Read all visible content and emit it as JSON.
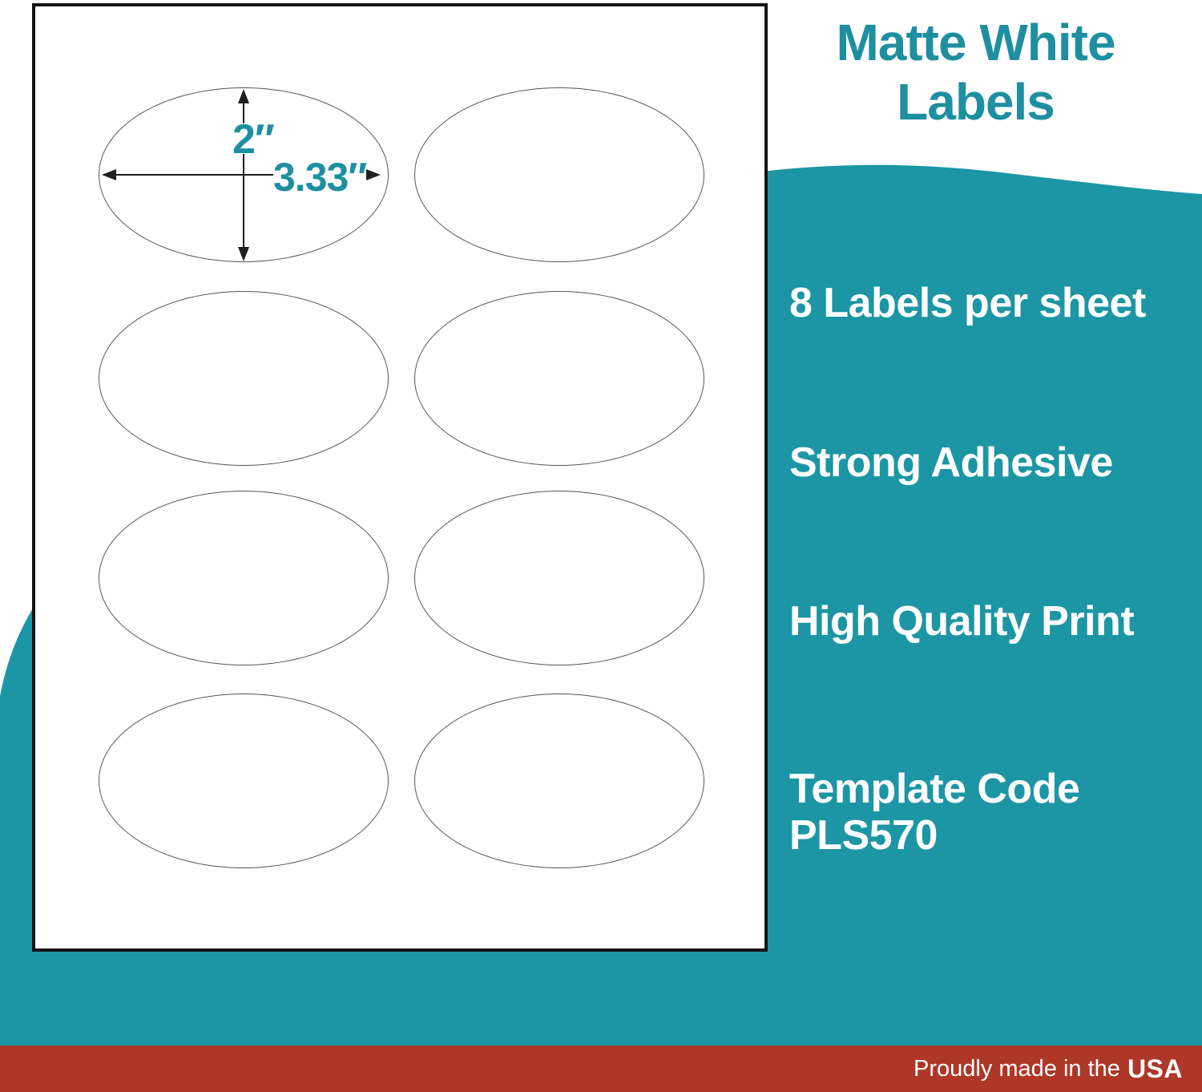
{
  "title": "Matte White Labels",
  "features": [
    "8 Labels per sheet",
    "Strong Adhesive",
    "High Quality Print",
    "Template Code PLS570"
  ],
  "dimensions": {
    "height_label": "2″",
    "width_label": "3.33″"
  },
  "sheet": {
    "label_count": 8,
    "rows": 4,
    "columns": 2
  },
  "footer": {
    "regular": "Proudly made in the",
    "bold": "USA"
  },
  "colors": {
    "teal_background": "#1C96A4",
    "title_teal": "#1E8FA0",
    "footer_red": "#AE3727",
    "sheet_border": "#141414",
    "oval_outline": "#555555",
    "dimension_arrow": "#1F1F1F",
    "text_white": "#FFFFFF"
  }
}
